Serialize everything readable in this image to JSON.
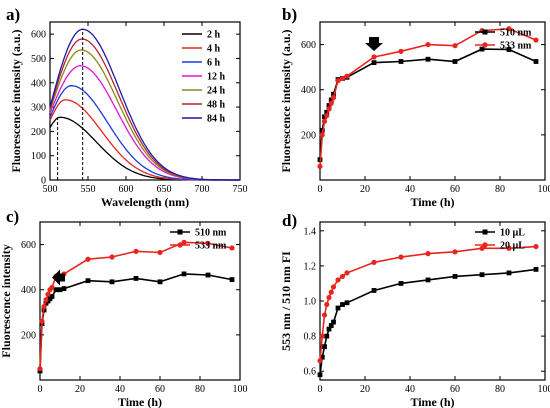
{
  "panels": {
    "a": "a)",
    "b": "b)",
    "c": "c)",
    "d": "d)"
  },
  "chart_data": [
    {
      "panel": "a)",
      "type": "line",
      "xlabel": "Wavelength (nm)",
      "ylabel": "Fluorescence intensity (a.u.)",
      "xlim": [
        500,
        750
      ],
      "ylim": [
        0,
        650
      ],
      "xticks": [
        500,
        550,
        600,
        650,
        700,
        750
      ],
      "yticks": [
        0,
        100,
        200,
        300,
        400,
        500,
        600
      ],
      "legend_position": "top-right",
      "annotations": [
        "dashed vertical line at 510 nm",
        "dashed vertical line at 543 nm"
      ],
      "series": [
        {
          "name": "2 h",
          "color": "#000000",
          "peak_x": 513,
          "peak_y": 258,
          "y_at_500": 215
        },
        {
          "name": "4 h",
          "color": "#e8261f",
          "peak_x": 520,
          "peak_y": 330,
          "y_at_500": 245
        },
        {
          "name": "6 h",
          "color": "#1a3be0",
          "peak_x": 528,
          "peak_y": 388,
          "y_at_500": 258
        },
        {
          "name": "12 h",
          "color": "#e016d8",
          "peak_x": 540,
          "peak_y": 470,
          "y_at_500": 275
        },
        {
          "name": "24 h",
          "color": "#8a8a1a",
          "peak_x": 541,
          "peak_y": 535,
          "y_at_500": 285
        },
        {
          "name": "48 h",
          "color": "#b5272d",
          "peak_x": 542,
          "peak_y": 580,
          "y_at_500": 292
        },
        {
          "name": "84 h",
          "color": "#1c1ca8",
          "peak_x": 543,
          "peak_y": 620,
          "y_at_500": 300
        }
      ]
    },
    {
      "panel": "b)",
      "type": "line",
      "xlabel": "Time (h)",
      "ylabel": "Fluorescence intensity (a.u.)",
      "xlim": [
        0,
        100
      ],
      "ylim": [
        0,
        700
      ],
      "xticks": [
        0,
        20,
        40,
        60,
        80,
        100
      ],
      "yticks": [
        200,
        400,
        600
      ],
      "legend_position": "top-right",
      "annotations": [
        "arrow pointing to 24 h"
      ],
      "series": [
        {
          "name": "510 nm",
          "color": "#000000",
          "x": [
            0,
            1,
            2,
            3,
            4,
            5,
            6,
            8,
            10,
            12,
            24,
            36,
            48,
            60,
            72,
            84,
            96
          ],
          "y": [
            90,
            220,
            280,
            300,
            330,
            355,
            380,
            445,
            450,
            455,
            520,
            525,
            535,
            525,
            580,
            578,
            525
          ]
        },
        {
          "name": "533 nm",
          "color": "#e8261f",
          "x": [
            0,
            1,
            2,
            3,
            4,
            5,
            6,
            8,
            10,
            12,
            24,
            36,
            48,
            60,
            72,
            84,
            96
          ],
          "y": [
            60,
            200,
            260,
            285,
            315,
            340,
            365,
            440,
            450,
            460,
            545,
            570,
            600,
            595,
            662,
            670,
            620
          ]
        }
      ]
    },
    {
      "panel": "c)",
      "type": "line",
      "xlabel": "Time (h)",
      "ylabel": "Fluorescence intensity",
      "xlim": [
        0,
        100
      ],
      "ylim": [
        0,
        700
      ],
      "xticks": [
        0,
        20,
        40,
        60,
        80,
        100
      ],
      "yticks": [
        200,
        400,
        600
      ],
      "legend_position": "top-right",
      "annotations": [
        "arrow pointing to 6 h"
      ],
      "series": [
        {
          "name": "510 nm",
          "color": "#000000",
          "x": [
            0,
            1,
            2,
            3,
            4,
            5,
            6,
            8,
            10,
            12,
            24,
            36,
            48,
            60,
            72,
            84,
            96
          ],
          "y": [
            40,
            250,
            310,
            340,
            350,
            360,
            370,
            400,
            400,
            405,
            440,
            435,
            450,
            435,
            470,
            465,
            445
          ]
        },
        {
          "name": "533 nm",
          "color": "#e8261f",
          "x": [
            0,
            1,
            2,
            3,
            4,
            5,
            6,
            8,
            10,
            12,
            24,
            36,
            48,
            60,
            72,
            84,
            96
          ],
          "y": [
            50,
            260,
            325,
            355,
            380,
            400,
            410,
            460,
            460,
            470,
            535,
            545,
            570,
            565,
            610,
            605,
            585
          ]
        }
      ]
    },
    {
      "panel": "d)",
      "type": "line",
      "xlabel": "Time (h)",
      "ylabel": "553 nm / 510 nm FI",
      "xlim": [
        0,
        100
      ],
      "ylim": [
        0.55,
        1.45
      ],
      "xticks": [
        0,
        20,
        40,
        60,
        80,
        100
      ],
      "yticks": [
        0.6,
        0.8,
        1.0,
        1.2,
        1.4
      ],
      "legend_position": "top-right",
      "series": [
        {
          "name": "10 µL",
          "color": "#000000",
          "x": [
            0,
            1,
            2,
            3,
            4,
            5,
            6,
            8,
            10,
            12,
            24,
            36,
            48,
            60,
            72,
            84,
            96
          ],
          "y": [
            0.58,
            0.68,
            0.74,
            0.8,
            0.84,
            0.86,
            0.88,
            0.96,
            0.98,
            0.99,
            1.06,
            1.1,
            1.12,
            1.14,
            1.15,
            1.16,
            1.18
          ]
        },
        {
          "name": "20 µL",
          "color": "#e8261f",
          "x": [
            0,
            1,
            2,
            3,
            4,
            5,
            6,
            8,
            10,
            12,
            24,
            36,
            48,
            60,
            72,
            84,
            96
          ],
          "y": [
            0.66,
            0.8,
            0.92,
            0.98,
            1.02,
            1.05,
            1.08,
            1.12,
            1.14,
            1.16,
            1.22,
            1.25,
            1.27,
            1.28,
            1.3,
            1.3,
            1.31
          ]
        }
      ]
    }
  ]
}
